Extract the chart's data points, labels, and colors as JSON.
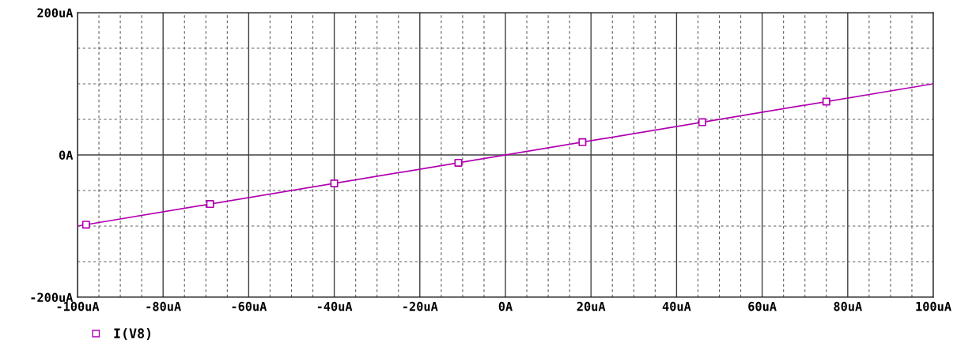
{
  "chart_data": {
    "type": "line",
    "xlim": [
      -100,
      100
    ],
    "ylim": [
      -200,
      200
    ],
    "xticks": [
      {
        "value": -100,
        "label": "-100uA"
      },
      {
        "value": -80,
        "label": "-80uA"
      },
      {
        "value": -60,
        "label": "-60uA"
      },
      {
        "value": -40,
        "label": "-40uA"
      },
      {
        "value": -20,
        "label": "-20uA"
      },
      {
        "value": 0,
        "label": "0A"
      },
      {
        "value": 20,
        "label": "20uA"
      },
      {
        "value": 40,
        "label": "40uA"
      },
      {
        "value": 60,
        "label": "60uA"
      },
      {
        "value": 80,
        "label": "80uA"
      },
      {
        "value": 100,
        "label": "100uA"
      }
    ],
    "yticks": [
      {
        "value": -200,
        "label": "-200uA"
      },
      {
        "value": -150,
        "label": null
      },
      {
        "value": -100,
        "label": null
      },
      {
        "value": -50,
        "label": null
      },
      {
        "value": 0,
        "label": "0A"
      },
      {
        "value": 50,
        "label": null
      },
      {
        "value": 100,
        "label": null
      },
      {
        "value": 150,
        "label": null
      },
      {
        "value": 200,
        "label": "200uA"
      }
    ],
    "grid": true,
    "legend": "bottom left",
    "series": [
      {
        "color": "#b000b0",
        "x": [
          -100,
          100
        ],
        "values": [
          -100,
          100
        ],
        "marker": "none"
      },
      {
        "type": "scatter",
        "name": "I(V8)",
        "color": "#b000b0",
        "marker": "square",
        "x": [
          -98,
          -69,
          -40,
          -11,
          18,
          46,
          75
        ],
        "values": [
          -98,
          -69,
          -40,
          -11,
          18,
          46,
          75
        ]
      }
    ]
  }
}
